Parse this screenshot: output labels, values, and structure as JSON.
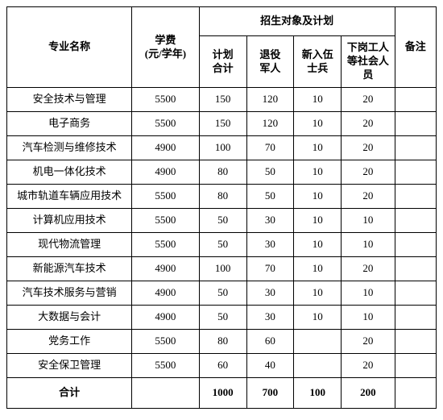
{
  "headers": {
    "major": "专业名称",
    "tuition": "学费\n(元/学年)",
    "plan_group": "招生对象及计划",
    "plan_total": "计划\n合计",
    "veterans": "退役\n军人",
    "recruits": "新入伍\n士兵",
    "laid_off": "下岗工人\n等社会人\n员",
    "remark": "备注"
  },
  "rows": [
    {
      "major": "安全技术与管理",
      "tuition": "5500",
      "plan_total": "150",
      "veterans": "120",
      "recruits": "10",
      "laid_off": "20",
      "remark": ""
    },
    {
      "major": "电子商务",
      "tuition": "5500",
      "plan_total": "150",
      "veterans": "120",
      "recruits": "10",
      "laid_off": "20",
      "remark": ""
    },
    {
      "major": "汽车检测与维修技术",
      "tuition": "4900",
      "plan_total": "100",
      "veterans": "70",
      "recruits": "10",
      "laid_off": "20",
      "remark": ""
    },
    {
      "major": "机电一体化技术",
      "tuition": "4900",
      "plan_total": "80",
      "veterans": "50",
      "recruits": "10",
      "laid_off": "20",
      "remark": ""
    },
    {
      "major": "城市轨道车辆应用技术",
      "tuition": "5500",
      "plan_total": "80",
      "veterans": "50",
      "recruits": "10",
      "laid_off": "20",
      "remark": ""
    },
    {
      "major": "计算机应用技术",
      "tuition": "5500",
      "plan_total": "50",
      "veterans": "30",
      "recruits": "10",
      "laid_off": "10",
      "remark": ""
    },
    {
      "major": "现代物流管理",
      "tuition": "5500",
      "plan_total": "50",
      "veterans": "30",
      "recruits": "10",
      "laid_off": "10",
      "remark": ""
    },
    {
      "major": "新能源汽车技术",
      "tuition": "4900",
      "plan_total": "100",
      "veterans": "70",
      "recruits": "10",
      "laid_off": "20",
      "remark": ""
    },
    {
      "major": "汽车技术服务与营销",
      "tuition": "4900",
      "plan_total": "50",
      "veterans": "30",
      "recruits": "10",
      "laid_off": "10",
      "remark": ""
    },
    {
      "major": "大数据与会计",
      "tuition": "4900",
      "plan_total": "50",
      "veterans": "30",
      "recruits": "10",
      "laid_off": "10",
      "remark": ""
    },
    {
      "major": "党务工作",
      "tuition": "5500",
      "plan_total": "80",
      "veterans": "60",
      "recruits": "",
      "laid_off": "20",
      "remark": ""
    },
    {
      "major": "安全保卫管理",
      "tuition": "5500",
      "plan_total": "60",
      "veterans": "40",
      "recruits": "",
      "laid_off": "20",
      "remark": ""
    }
  ],
  "total": {
    "label": "合计",
    "tuition": "",
    "plan_total": "1000",
    "veterans": "700",
    "recruits": "100",
    "laid_off": "200",
    "remark": ""
  },
  "style": {
    "font_family": "SimSun",
    "border_color": "#000000",
    "background": "#ffffff",
    "text_color": "#000000",
    "header_fontsize": 13,
    "body_fontsize": 13
  }
}
